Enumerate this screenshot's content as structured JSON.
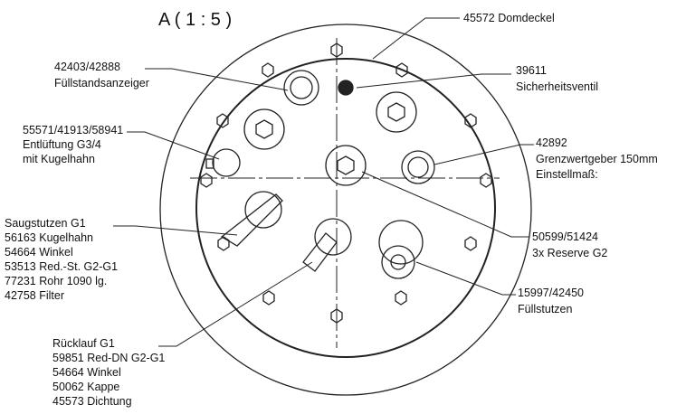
{
  "title": "A ( 1 : 5 )",
  "labels": [
    {
      "lines": [
        "45572 Domdeckel"
      ]
    },
    {
      "lines": [
        "42403/42888",
        "Füllstandsanzeiger"
      ]
    },
    {
      "lines": [
        "39611",
        "Sicherheitsventil"
      ]
    },
    {
      "lines": [
        "55571/41913/58941",
        "Entlüftung G3/4",
        "mit Kugelhahn"
      ]
    },
    {
      "lines": [
        "42892",
        "Grenzwertgeber 150mm",
        "Einstellmaß:"
      ]
    },
    {
      "lines": [
        "Saugstutzen G1",
        "56163 Kugelhahn",
        "54664 Winkel",
        "53513 Red.-St. G2-G1",
        "77231 Rohr 1090 lg.",
        "42758 Filter"
      ]
    },
    {
      "lines": [
        "50599/51424",
        "3x Reserve G2"
      ]
    },
    {
      "lines": [
        "15997/42450",
        "Füllstutzen"
      ]
    },
    {
      "lines": [
        "Rücklauf G1",
        "59851 Red-DN G2-G1",
        "54664 Winkel",
        "50062 Kappe",
        "45573 Dichtung"
      ]
    }
  ]
}
